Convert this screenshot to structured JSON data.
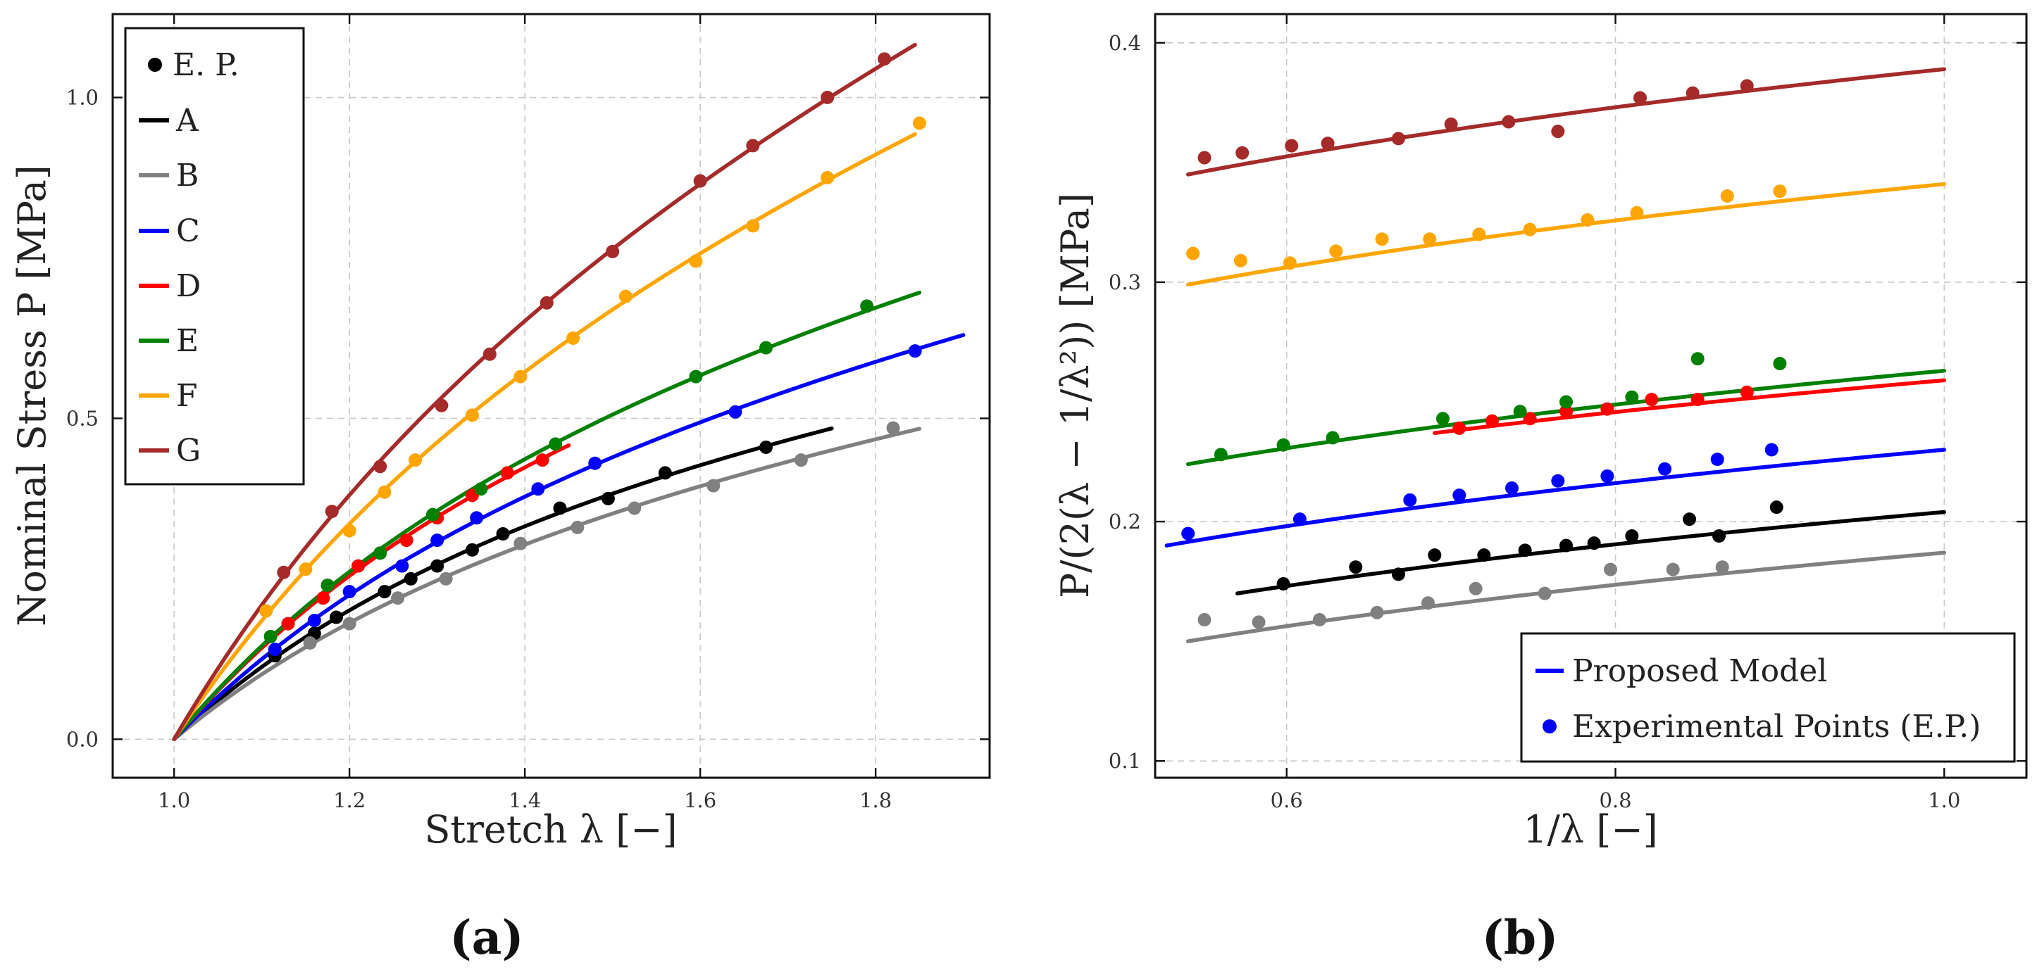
{
  "figure": {
    "panel_labels": [
      "(a)",
      "(b)"
    ],
    "colors": {
      "A": "#000000",
      "B": "#808080",
      "C": "#0000ff",
      "D": "#ff0000",
      "E": "#008000",
      "F": "#ffa500",
      "G": "#a52a2a"
    }
  },
  "chart_data": [
    {
      "type": "line",
      "panel": "(a)",
      "title": "",
      "xlabel": "Stretch λ [−]",
      "ylabel": "Nominal Stress P [MPa]",
      "xlim": [
        0.93,
        1.93
      ],
      "ylim": [
        -0.06,
        1.13
      ],
      "xticks": [
        1.0,
        1.2,
        1.4,
        1.6,
        1.8
      ],
      "yticks": [
        0.0,
        0.5,
        1.0
      ],
      "xtick_labels": [
        "1.0",
        "1.2",
        "1.4",
        "1.6",
        "1.8"
      ],
      "ytick_labels": [
        "0.0",
        "0.5",
        "1.0"
      ],
      "grid": true,
      "legend": {
        "position": "top-left",
        "entries": [
          {
            "key": "EP",
            "label": "E. P.",
            "marker": "dot"
          },
          {
            "key": "A",
            "label": "A"
          },
          {
            "key": "B",
            "label": "B"
          },
          {
            "key": "C",
            "label": "C"
          },
          {
            "key": "D",
            "label": "D"
          },
          {
            "key": "E",
            "label": "E"
          },
          {
            "key": "F",
            "label": "F"
          },
          {
            "key": "G",
            "label": "G"
          }
        ]
      },
      "series": [
        {
          "name": "A",
          "model_xmax": 1.75,
          "points": [
            [
              1.115,
              0.13
            ],
            [
              1.16,
              0.165
            ],
            [
              1.185,
              0.19
            ],
            [
              1.24,
              0.23
            ],
            [
              1.27,
              0.25
            ],
            [
              1.3,
              0.27
            ],
            [
              1.34,
              0.295
            ],
            [
              1.375,
              0.32
            ],
            [
              1.44,
              0.36
            ],
            [
              1.495,
              0.375
            ],
            [
              1.56,
              0.415
            ],
            [
              1.675,
              0.455
            ]
          ]
        },
        {
          "name": "B",
          "model_xmax": 1.85,
          "points": [
            [
              1.155,
              0.15
            ],
            [
              1.2,
              0.18
            ],
            [
              1.255,
              0.22
            ],
            [
              1.31,
              0.25
            ],
            [
              1.395,
              0.305
            ],
            [
              1.46,
              0.33
            ],
            [
              1.525,
              0.36
            ],
            [
              1.615,
              0.395
            ],
            [
              1.715,
              0.435
            ],
            [
              1.82,
              0.485
            ]
          ]
        },
        {
          "name": "C",
          "model_xmax": 1.9,
          "points": [
            [
              1.115,
              0.14
            ],
            [
              1.16,
              0.185
            ],
            [
              1.2,
              0.23
            ],
            [
              1.26,
              0.27
            ],
            [
              1.3,
              0.31
            ],
            [
              1.345,
              0.345
            ],
            [
              1.415,
              0.39
            ],
            [
              1.48,
              0.43
            ],
            [
              1.64,
              0.51
            ],
            [
              1.845,
              0.605
            ]
          ]
        },
        {
          "name": "D",
          "model_xmax": 1.45,
          "points": [
            [
              1.13,
              0.18
            ],
            [
              1.17,
              0.22
            ],
            [
              1.21,
              0.27
            ],
            [
              1.265,
              0.31
            ],
            [
              1.3,
              0.345
            ],
            [
              1.34,
              0.38
            ],
            [
              1.38,
              0.415
            ],
            [
              1.42,
              0.435
            ]
          ]
        },
        {
          "name": "E",
          "model_xmax": 1.85,
          "points": [
            [
              1.11,
              0.16
            ],
            [
              1.175,
              0.24
            ],
            [
              1.235,
              0.29
            ],
            [
              1.295,
              0.35
            ],
            [
              1.35,
              0.39
            ],
            [
              1.435,
              0.46
            ],
            [
              1.595,
              0.565
            ],
            [
              1.675,
              0.61
            ],
            [
              1.79,
              0.675
            ]
          ]
        },
        {
          "name": "F",
          "model_xmax": 1.845,
          "points": [
            [
              1.105,
              0.2
            ],
            [
              1.15,
              0.265
            ],
            [
              1.2,
              0.325
            ],
            [
              1.24,
              0.385
            ],
            [
              1.275,
              0.435
            ],
            [
              1.34,
              0.505
            ],
            [
              1.395,
              0.565
            ],
            [
              1.455,
              0.625
            ],
            [
              1.515,
              0.69
            ],
            [
              1.595,
              0.745
            ],
            [
              1.66,
              0.8
            ],
            [
              1.745,
              0.875
            ],
            [
              1.85,
              0.96
            ]
          ]
        },
        {
          "name": "G",
          "model_xmax": 1.845,
          "points": [
            [
              1.125,
              0.26
            ],
            [
              1.18,
              0.355
            ],
            [
              1.235,
              0.425
            ],
            [
              1.305,
              0.52
            ],
            [
              1.36,
              0.6
            ],
            [
              1.425,
              0.68
            ],
            [
              1.5,
              0.76
            ],
            [
              1.6,
              0.87
            ],
            [
              1.66,
              0.925
            ],
            [
              1.745,
              1.0
            ],
            [
              1.81,
              1.06
            ]
          ]
        }
      ]
    },
    {
      "type": "line",
      "panel": "(b)",
      "title": "",
      "xlabel": "1/λ [−]",
      "ylabel": "P/(2(λ − 1/λ²)) [MPa]",
      "xlim": [
        0.52,
        1.05
      ],
      "ylim": [
        0.093,
        0.412
      ],
      "xticks": [
        0.6,
        0.8,
        1.0
      ],
      "yticks": [
        0.1,
        0.2,
        0.3,
        0.4
      ],
      "xtick_labels": [
        "0.6",
        "0.8",
        "1.0"
      ],
      "ytick_labels": [
        "0.1",
        "0.2",
        "0.3",
        "0.4"
      ],
      "grid": true,
      "legend": {
        "position": "bottom-right",
        "entries": [
          {
            "key": "model",
            "label": "Proposed Model",
            "marker": "line"
          },
          {
            "key": "points",
            "label": "Experimental Points (E.P.)",
            "marker": "dot"
          }
        ]
      },
      "series": [
        {
          "name": "A",
          "model": {
            "x_start": 0.57,
            "y_start": 0.17,
            "y_end": 0.204
          },
          "points": [
            [
              0.598,
              0.174
            ],
            [
              0.642,
              0.181
            ],
            [
              0.668,
              0.178
            ],
            [
              0.69,
              0.186
            ],
            [
              0.72,
              0.186
            ],
            [
              0.745,
              0.188
            ],
            [
              0.77,
              0.19
            ],
            [
              0.787,
              0.191
            ],
            [
              0.81,
              0.194
            ],
            [
              0.845,
              0.201
            ],
            [
              0.863,
              0.194
            ],
            [
              0.898,
              0.206
            ]
          ]
        },
        {
          "name": "B",
          "model": {
            "x_start": 0.54,
            "y_start": 0.15,
            "y_end": 0.187
          },
          "points": [
            [
              0.55,
              0.159
            ],
            [
              0.583,
              0.158
            ],
            [
              0.62,
              0.159
            ],
            [
              0.655,
              0.162
            ],
            [
              0.686,
              0.166
            ],
            [
              0.715,
              0.172
            ],
            [
              0.757,
              0.17
            ],
            [
              0.797,
              0.18
            ],
            [
              0.835,
              0.18
            ],
            [
              0.865,
              0.181
            ]
          ]
        },
        {
          "name": "C",
          "model": {
            "x_start": 0.527,
            "y_start": 0.19,
            "y_end": 0.23
          },
          "points": [
            [
              0.54,
              0.195
            ],
            [
              0.608,
              0.201
            ],
            [
              0.675,
              0.209
            ],
            [
              0.705,
              0.211
            ],
            [
              0.737,
              0.214
            ],
            [
              0.765,
              0.217
            ],
            [
              0.795,
              0.219
            ],
            [
              0.83,
              0.222
            ],
            [
              0.862,
              0.226
            ],
            [
              0.895,
              0.23
            ]
          ]
        },
        {
          "name": "D",
          "model": {
            "x_start": 0.69,
            "y_start": 0.237,
            "y_end": 0.259
          },
          "points": [
            [
              0.705,
              0.239
            ],
            [
              0.725,
              0.242
            ],
            [
              0.748,
              0.243
            ],
            [
              0.77,
              0.246
            ],
            [
              0.795,
              0.247
            ],
            [
              0.822,
              0.251
            ],
            [
              0.85,
              0.251
            ],
            [
              0.88,
              0.254
            ]
          ]
        },
        {
          "name": "E",
          "model": {
            "x_start": 0.54,
            "y_start": 0.224,
            "y_end": 0.263
          },
          "points": [
            [
              0.56,
              0.228
            ],
            [
              0.598,
              0.232
            ],
            [
              0.628,
              0.235
            ],
            [
              0.695,
              0.243
            ],
            [
              0.742,
              0.246
            ],
            [
              0.77,
              0.25
            ],
            [
              0.81,
              0.252
            ],
            [
              0.85,
              0.268
            ],
            [
              0.9,
              0.266
            ]
          ]
        },
        {
          "name": "F",
          "model": {
            "x_start": 0.54,
            "y_start": 0.299,
            "y_end": 0.341
          },
          "points": [
            [
              0.543,
              0.312
            ],
            [
              0.572,
              0.309
            ],
            [
              0.602,
              0.308
            ],
            [
              0.63,
              0.313
            ],
            [
              0.658,
              0.318
            ],
            [
              0.687,
              0.318
            ],
            [
              0.717,
              0.32
            ],
            [
              0.748,
              0.322
            ],
            [
              0.783,
              0.326
            ],
            [
              0.813,
              0.329
            ],
            [
              0.868,
              0.336
            ],
            [
              0.9,
              0.338
            ]
          ]
        },
        {
          "name": "G",
          "model": {
            "x_start": 0.54,
            "y_start": 0.345,
            "y_end": 0.389
          },
          "points": [
            [
              0.55,
              0.352
            ],
            [
              0.573,
              0.354
            ],
            [
              0.603,
              0.357
            ],
            [
              0.625,
              0.358
            ],
            [
              0.668,
              0.36
            ],
            [
              0.7,
              0.366
            ],
            [
              0.735,
              0.367
            ],
            [
              0.765,
              0.363
            ],
            [
              0.815,
              0.377
            ],
            [
              0.847,
              0.379
            ],
            [
              0.88,
              0.382
            ]
          ]
        }
      ]
    }
  ]
}
